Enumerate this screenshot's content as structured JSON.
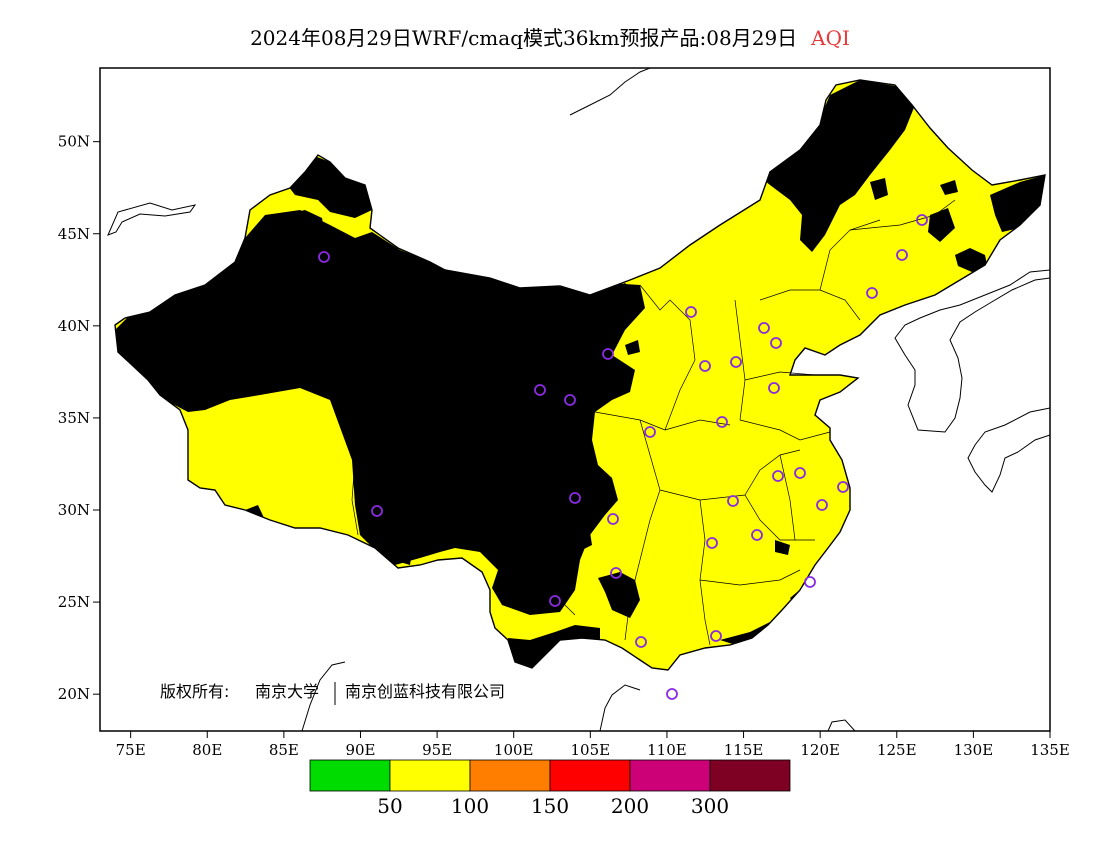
{
  "title": {
    "main": "2024年08月29日WRF/cmaq模式36km预报产品:08月29日",
    "variable": "AQI"
  },
  "map": {
    "lon_range": [
      73,
      135
    ],
    "lat_range": [
      18,
      54
    ],
    "x_tick_labels": [
      "75E",
      "80E",
      "85E",
      "90E",
      "95E",
      "100E",
      "105E",
      "110E",
      "115E",
      "120E",
      "125E",
      "130E",
      "135E"
    ],
    "y_tick_labels": [
      "20N",
      "25N",
      "30N",
      "35N",
      "40N",
      "45N",
      "50N"
    ],
    "copyright_prefix": "版权所有:",
    "copyright_org1": "南京大学",
    "copyright_org2": "南京创蓝科技有限公司"
  },
  "legend": {
    "colors": [
      "#00dc00",
      "#ffff00",
      "#ff7e00",
      "#ff0000",
      "#cc0077",
      "#7e0023"
    ],
    "labels": [
      "50",
      "100",
      "150",
      "200",
      "300"
    ]
  },
  "aqi_categories": [
    "0-50",
    "50-100",
    "100-150",
    "150-200",
    "200-300",
    ">300"
  ]
}
